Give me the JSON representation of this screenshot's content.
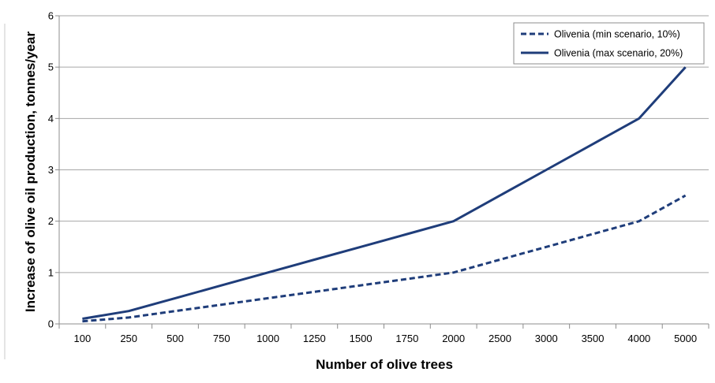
{
  "chart_data": {
    "type": "line",
    "title": "",
    "xlabel": "Number of olive trees",
    "ylabel": "Increase of olive oil production, tonnes/year",
    "categories": [
      "100",
      "250",
      "500",
      "750",
      "1000",
      "1250",
      "1500",
      "1750",
      "2000",
      "2500",
      "3000",
      "3500",
      "4000",
      "5000"
    ],
    "ylim": [
      0,
      6
    ],
    "yticks": [
      "0",
      "1",
      "2",
      "3",
      "4",
      "5",
      "6"
    ],
    "grid": "horizontal",
    "legend_position": "top-right",
    "series": [
      {
        "name": "Olivenia (min scenario, 10%)",
        "style": "dashed",
        "color": "#1f3d7a",
        "values": [
          0.05,
          0.125,
          0.25,
          0.375,
          0.5,
          0.625,
          0.75,
          0.875,
          1.0,
          1.25,
          1.5,
          1.75,
          2.0,
          2.5
        ]
      },
      {
        "name": "Olivenia (max scenario, 20%)",
        "style": "solid",
        "color": "#1f3d7a",
        "values": [
          0.1,
          0.25,
          0.5,
          0.75,
          1.0,
          1.25,
          1.5,
          1.75,
          2.0,
          2.5,
          3.0,
          3.5,
          4.0,
          5.0
        ]
      }
    ]
  }
}
